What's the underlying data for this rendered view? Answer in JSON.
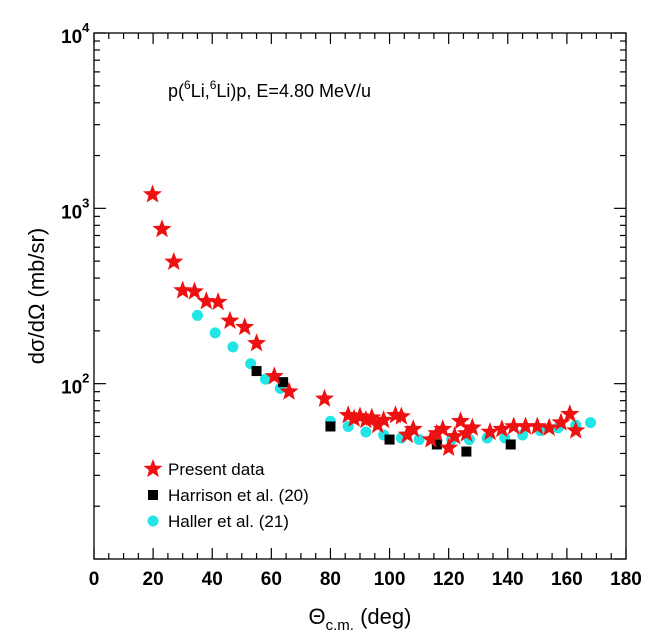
{
  "chart_data": {
    "type": "scatter",
    "annotation": {
      "p1": "p(",
      "sup1": "6",
      "p2": "Li,",
      "sup2": "6",
      "p3": "Li)p, E=4.80 MeV/u"
    },
    "xlabel": {
      "main": "Θ",
      "sub": "c.m.",
      "after": " (deg)"
    },
    "ylabel": "dσ/dΩ (mb/sr)",
    "xlim": [
      0,
      180
    ],
    "ylim": [
      10,
      10000
    ],
    "y_scale": "log",
    "x_ticks": [
      0,
      20,
      40,
      60,
      80,
      100,
      120,
      140,
      160,
      180
    ],
    "y_ticks": [
      {
        "value": 100,
        "base": "10",
        "exp": "2"
      },
      {
        "value": 1000,
        "base": "10",
        "exp": "3"
      },
      {
        "value": 10000,
        "base": "10",
        "exp": "4"
      }
    ],
    "grid": false,
    "legend_position": "bottom-left",
    "series": [
      {
        "name": "Present data",
        "marker": "star",
        "color": "#ee1111",
        "x": [
          19.8,
          23,
          27,
          30,
          34,
          38,
          42,
          46,
          51,
          55,
          61,
          66,
          78,
          86,
          88,
          90,
          92,
          94,
          96,
          98,
          102,
          104,
          106,
          108,
          114,
          116,
          118,
          120,
          122,
          124,
          126,
          128,
          134,
          138,
          142,
          146,
          150,
          154,
          158,
          161,
          163
        ],
        "y": [
          1200,
          760,
          495,
          340,
          335,
          295,
          292,
          228,
          210,
          170,
          110,
          90,
          82,
          66,
          63,
          65,
          62,
          64,
          58,
          62,
          66,
          65,
          51,
          55,
          48,
          52,
          55,
          43,
          50,
          61,
          52,
          56,
          53,
          55,
          57,
          57,
          57,
          56,
          60,
          67,
          54
        ]
      },
      {
        "name": "Harrison et al. (20)",
        "marker": "square",
        "color": "#000000",
        "x": [
          55,
          64,
          80,
          100,
          116,
          126,
          141
        ],
        "y": [
          118,
          102,
          57,
          48,
          45,
          41,
          45
        ]
      },
      {
        "name": "Haller et al. (21)",
        "marker": "circle",
        "color": "#22e6e6",
        "x": [
          35,
          41,
          47,
          53,
          58,
          63,
          80,
          86,
          92,
          98,
          104,
          110,
          116,
          121,
          127,
          133,
          139,
          145,
          151,
          157,
          163,
          168
        ],
        "y": [
          245,
          195,
          162,
          130,
          106,
          94,
          61,
          57,
          53,
          51,
          49,
          48,
          46,
          48,
          48,
          49,
          49,
          51,
          54,
          56,
          58,
          60
        ]
      }
    ]
  }
}
